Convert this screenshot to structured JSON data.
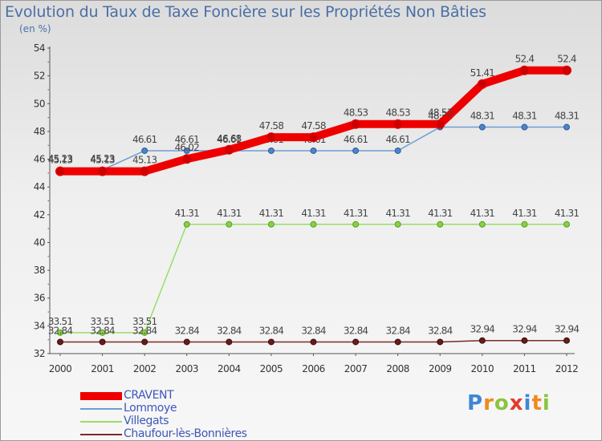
{
  "chart_data": {
    "type": "line",
    "title": "Evolution du Taux de Taxe Foncière sur les Propriétés Non Bâties",
    "ylabel": "(en %)",
    "xlabel": "",
    "ylim": [
      32,
      54
    ],
    "yticks": [
      32,
      34,
      36,
      38,
      40,
      42,
      44,
      46,
      48,
      50,
      52,
      54
    ],
    "categories": [
      "2000",
      "2001",
      "2002",
      "2003",
      "2004",
      "2005",
      "2006",
      "2007",
      "2008",
      "2009",
      "2010",
      "2011",
      "2012"
    ],
    "grid": false,
    "legend_position": "bottom-left",
    "series": [
      {
        "name": "Villegats",
        "color": "#99dd66",
        "values": [
          33.51,
          33.51,
          33.51,
          41.31,
          41.31,
          41.31,
          41.31,
          41.31,
          41.31,
          41.31,
          41.31,
          41.31,
          41.31
        ],
        "labels": [
          "33.51",
          "33.51",
          "33.51",
          "41.31",
          "41.31",
          "41.31",
          "41.31",
          "41.31",
          "41.31",
          "41.31",
          "41.31",
          "41.31",
          "41.31"
        ]
      },
      {
        "name": "Chaufour-lès-Bonnières",
        "color": "#7a2a2a",
        "values": [
          32.84,
          32.84,
          32.84,
          32.84,
          32.84,
          32.84,
          32.84,
          32.84,
          32.84,
          32.84,
          32.94,
          32.94,
          32.94
        ],
        "labels": [
          "32.84",
          "32.84",
          "32.84",
          "32.84",
          "32.84",
          "32.84",
          "32.84",
          "32.84",
          "32.84",
          "32.84",
          "32.94",
          "32.94",
          "32.94"
        ]
      },
      {
        "name": "Lommoye",
        "color": "#6a9fd4",
        "values": [
          45.23,
          45.23,
          46.61,
          46.61,
          46.61,
          46.61,
          46.61,
          46.61,
          46.61,
          48.31,
          48.31,
          48.31,
          48.31
        ],
        "labels": [
          "45.23",
          "45.23",
          "46.61",
          "46.61",
          "46.61",
          "46.61",
          "46.61",
          "46.61",
          "46.61",
          "48.31",
          "48.31",
          "48.31",
          "48.31"
        ]
      },
      {
        "name": "CRAVENT",
        "color": "#ee0000",
        "values": [
          45.13,
          45.13,
          45.13,
          46.02,
          46.68,
          47.58,
          47.58,
          48.53,
          48.53,
          48.53,
          51.41,
          52.4,
          52.4
        ],
        "labels": [
          "45.13",
          "45.13",
          "45.13",
          "46.02",
          "46.68",
          "47.58",
          "47.58",
          "48.53",
          "48.53",
          "48.53",
          "51.41",
          "52.4",
          "52.4"
        ]
      }
    ],
    "legend_order": [
      "CRAVENT",
      "Lommoye",
      "Villegats",
      "Chaufour-lès-Bonnières"
    ]
  },
  "logo": {
    "letters": [
      "P",
      "r",
      "o",
      "x",
      "i",
      "t",
      "i"
    ],
    "colors": [
      "#3f86d6",
      "#f08a1c",
      "#8ac43f",
      "#e23b2e",
      "#3f86d6",
      "#f08a1c",
      "#8ac43f"
    ]
  }
}
